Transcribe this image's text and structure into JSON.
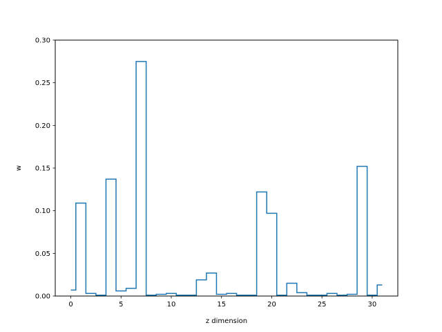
{
  "chart_data": {
    "type": "line",
    "drawstyle": "steps-mid",
    "title": "",
    "xlabel": "z dimension",
    "ylabel": "w",
    "xlim": [
      -1.55,
      32.55
    ],
    "ylim": [
      0,
      0.3
    ],
    "xticks": [
      0,
      5,
      10,
      15,
      20,
      25,
      30
    ],
    "xtick_labels": [
      "0",
      "5",
      "10",
      "15",
      "20",
      "25",
      "30"
    ],
    "yticks": [
      0,
      0.05,
      0.1,
      0.15,
      0.2,
      0.25,
      0.3
    ],
    "ytick_labels": [
      "0.00",
      "0.05",
      "0.10",
      "0.15",
      "0.20",
      "0.25",
      "0.30"
    ],
    "grid": false,
    "legend": "none",
    "color": "#1f77b4",
    "x": [
      0,
      1,
      2,
      3,
      4,
      5,
      6,
      7,
      8,
      9,
      10,
      11,
      12,
      13,
      14,
      15,
      16,
      17,
      18,
      19,
      20,
      21,
      22,
      23,
      24,
      25,
      26,
      27,
      28,
      29,
      30,
      31
    ],
    "y": [
      0.007,
      0.109,
      0.003,
      0.001,
      0.137,
      0.006,
      0.009,
      0.275,
      0.001,
      0.002,
      0.003,
      0.001,
      0.001,
      0.019,
      0.027,
      0.002,
      0.003,
      0.001,
      0.001,
      0.122,
      0.097,
      0.001,
      0.015,
      0.004,
      0.001,
      0.001,
      0.003,
      0.001,
      0.002,
      0.152,
      0.001,
      0.013
    ]
  }
}
